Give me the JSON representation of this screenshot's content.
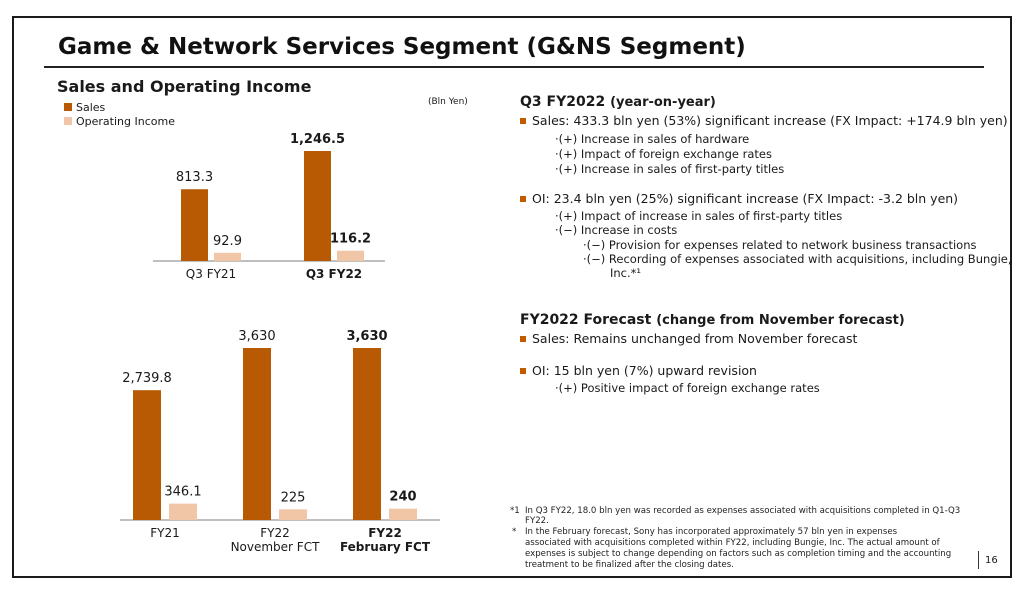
{
  "page_title": "Game & Network Services Segment (G&NS Segment)",
  "chart_section_title": "Sales and Operating Income",
  "unit_label": "(Bln Yen)",
  "colors": {
    "sales": "#b85a04",
    "oi": "#f0c6a6",
    "bullet": "#c45a00",
    "axis": "#7f7f7f"
  },
  "chart_data": [
    {
      "type": "bar",
      "categories": [
        "Q3 FY21",
        "Q3 FY22"
      ],
      "category_bold": [
        false,
        true
      ],
      "series": [
        {
          "name": "Sales",
          "values": [
            813.3,
            1246.5
          ],
          "labels": [
            "813.3",
            "1,246.5"
          ]
        },
        {
          "name": "Operating Income",
          "values": [
            92.9,
            116.2
          ],
          "labels": [
            "92.9",
            "116.2"
          ]
        }
      ],
      "legend": [
        "Sales",
        "Operating Income"
      ],
      "legend_position": "top-left",
      "ylim": [
        0,
        1400
      ],
      "grid": false
    },
    {
      "type": "bar",
      "categories": [
        "FY21",
        "FY22 November FCT",
        "FY22 February FCT"
      ],
      "category_lines": [
        [
          "FY21"
        ],
        [
          "FY22",
          "November FCT"
        ],
        [
          "FY22",
          "February FCT"
        ]
      ],
      "category_bold": [
        false,
        false,
        true
      ],
      "series": [
        {
          "name": "Sales",
          "values": [
            2739.8,
            3630,
            3630
          ],
          "labels": [
            "2,739.8",
            "3,630",
            "3,630"
          ]
        },
        {
          "name": "Operating Income",
          "values": [
            346.1,
            225,
            240
          ],
          "labels": [
            "346.1",
            "225",
            "240"
          ]
        }
      ],
      "ylim": [
        0,
        4300
      ],
      "grid": false
    }
  ],
  "q3": {
    "heading": "Q3 FY2022",
    "heading_paren": "(year-on-year)",
    "sales_bullet": "Sales: 433.3 bln yen (53%) significant increase (FX Impact: +174.9 bln yen)",
    "sales_subs": [
      "·(+) Increase in sales of hardware",
      "·(+) Impact of foreign exchange rates",
      "·(+) Increase in sales of first-party titles"
    ],
    "oi_bullet": "OI:  23.4 bln yen (25%) significant increase (FX Impact: -3.2 bln yen)",
    "oi_subs": [
      "·(+) Impact of increase in sales of first-party titles",
      "·(−) Increase in costs"
    ],
    "oi_subsubs": [
      "·(−) Provision for expenses related to network business transactions",
      "·(−) Recording of expenses associated with acquisitions, including Bungie,",
      "Inc.*¹"
    ]
  },
  "forecast": {
    "heading": "FY2022 Forecast",
    "heading_paren": "(change from November forecast)",
    "sales_bullet": "Sales: Remains unchanged from November forecast",
    "oi_bullet": "OI: 15 bln yen (7%) upward revision",
    "oi_subs": [
      "·(+) Positive impact of foreign exchange rates"
    ]
  },
  "footnotes": [
    {
      "mark": "*1",
      "lines": [
        "In Q3 FY22, 18.0 bln yen was recorded as expenses associated with acquisitions completed in Q1-Q3",
        "FY22."
      ]
    },
    {
      "mark": "*",
      "lines": [
        "In the February forecast, Sony has incorporated approximately 57 bln yen in expenses",
        "associated with acquisitions completed within FY22, including Bungie, Inc. The actual amount of",
        "expenses is subject to change depending on factors such as completion timing and the accounting",
        "treatment to be finalized after the closing dates."
      ]
    }
  ],
  "page_number": "16"
}
